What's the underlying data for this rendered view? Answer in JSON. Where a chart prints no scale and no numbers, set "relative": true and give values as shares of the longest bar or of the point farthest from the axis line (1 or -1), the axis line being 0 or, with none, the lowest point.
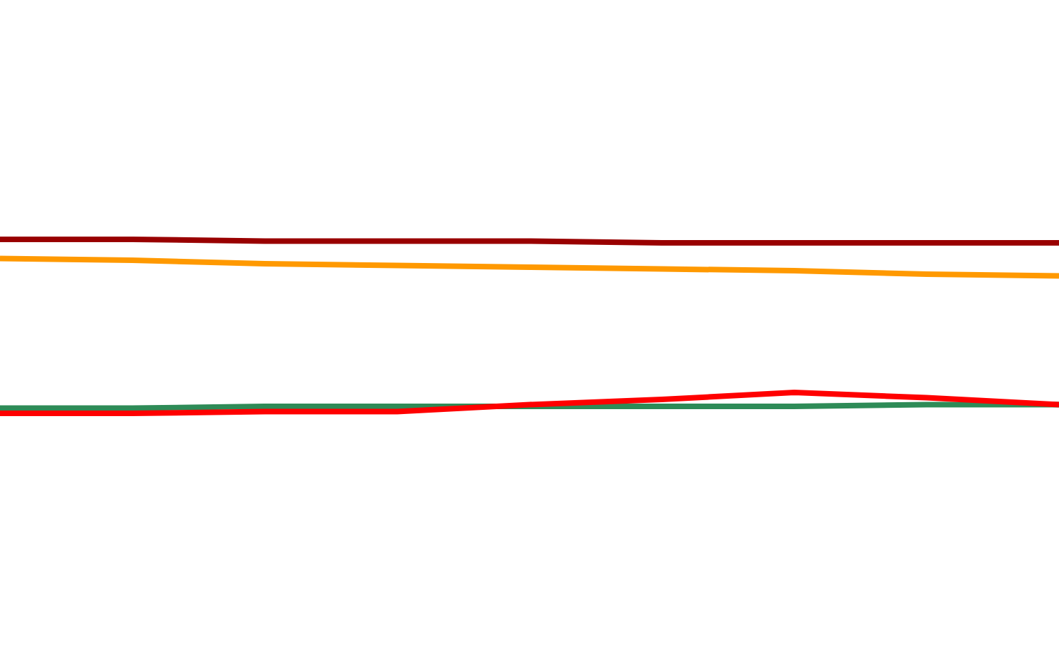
{
  "chart_data": {
    "type": "line",
    "relative": true,
    "legend": false,
    "marker": "none",
    "line_style": "solid",
    "categories": [
      null,
      null,
      null,
      null,
      null,
      null,
      null,
      null,
      null
    ],
    "series": [
      {
        "color": "#990000",
        "values": [
          1,
          1,
          0.99,
          0.99,
          0.99,
          0.98,
          0.98,
          0.98,
          0.98
        ]
      },
      {
        "color": "#ff9900",
        "values": [
          0.89,
          0.88,
          0.86,
          0.85,
          0.84,
          0.83,
          0.82,
          0.8,
          0.79
        ]
      },
      {
        "color": "#2e8b57",
        "values": [
          0.03,
          0.03,
          0.04,
          0.04,
          0.04,
          0.04,
          0.04,
          0.05,
          0.05
        ]
      },
      {
        "color": "#ff0000",
        "values": [
          0,
          0,
          0.01,
          0.01,
          0.05,
          0.08,
          0.12,
          0.09,
          0.05
        ]
      }
    ]
  }
}
